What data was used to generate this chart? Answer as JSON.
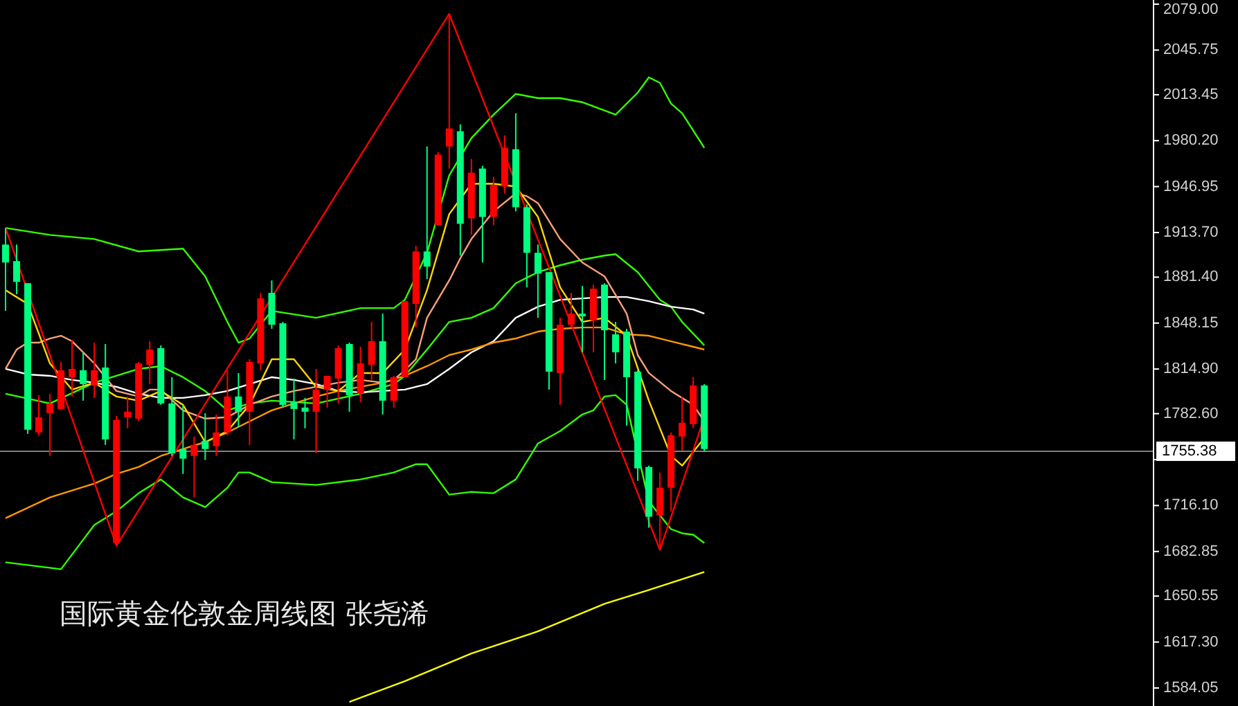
{
  "chart_data": {
    "type": "candlestick",
    "title": "国际黄金伦敦金周线图  张尧浠",
    "categories": [
      null,
      null,
      null,
      null,
      null,
      null,
      null,
      null,
      null,
      null,
      null,
      null,
      null,
      null,
      null,
      null,
      null,
      null,
      null,
      null,
      null,
      null,
      null,
      null,
      null,
      null,
      null,
      null,
      null,
      null,
      null,
      null,
      null,
      null,
      null,
      null,
      null,
      null,
      null,
      null,
      null,
      null,
      null,
      null,
      null,
      null,
      null,
      null,
      null,
      null,
      null,
      null,
      null,
      null,
      null,
      null,
      null,
      null,
      null,
      null,
      null,
      null,
      null,
      null,
      null,
      null,
      null,
      null,
      null,
      null,
      null,
      null,
      null,
      null,
      null,
      null,
      null,
      null,
      null,
      null,
      null,
      null,
      null,
      null,
      null,
      null,
      null,
      null,
      null,
      null,
      null,
      null,
      null,
      null,
      null,
      null,
      null,
      null,
      null,
      null,
      null,
      null,
      null,
      null
    ],
    "ohlc": [
      [
        1905,
        1917,
        1857,
        1892
      ],
      [
        1893,
        1905,
        1869,
        1878
      ],
      [
        1877,
        1877,
        1768,
        1771
      ],
      [
        1769,
        1796,
        1767,
        1780
      ],
      [
        1783,
        1797,
        1752,
        1790
      ],
      [
        1786,
        1820,
        1785,
        1814
      ],
      [
        1809,
        1836,
        1795,
        1815
      ],
      [
        1814,
        1827,
        1792,
        1804
      ],
      [
        1803,
        1834,
        1794,
        1814
      ],
      [
        1816,
        1833,
        1760,
        1764
      ],
      [
        1689,
        1781,
        1687,
        1778
      ],
      [
        1780,
        1795,
        1772,
        1784
      ],
      [
        1779,
        1820,
        1777,
        1819
      ],
      [
        1818,
        1835,
        1804,
        1829
      ],
      [
        1830,
        1832,
        1789,
        1790
      ],
      [
        1790,
        1809,
        1752,
        1754
      ],
      [
        1757,
        1789,
        1739,
        1750
      ],
      [
        1752,
        1766,
        1722,
        1760
      ],
      [
        1763,
        1783,
        1749,
        1757
      ],
      [
        1759,
        1782,
        1752,
        1769
      ],
      [
        1769,
        1814,
        1767,
        1795
      ],
      [
        1795,
        1812,
        1773,
        1784
      ],
      [
        1784,
        1822,
        1760,
        1820
      ],
      [
        1819,
        1870,
        1814,
        1866
      ],
      [
        1870,
        1879,
        1844,
        1847
      ],
      [
        1848,
        1849,
        1787,
        1789
      ],
      [
        1791,
        1808,
        1764,
        1786
      ],
      [
        1787,
        1794,
        1772,
        1784
      ],
      [
        1784,
        1815,
        1754,
        1800
      ],
      [
        1800,
        1810,
        1787,
        1810
      ],
      [
        1808,
        1832,
        1790,
        1830
      ],
      [
        1833,
        1834,
        1784,
        1796
      ],
      [
        1797,
        1831,
        1791,
        1819
      ],
      [
        1818,
        1849,
        1807,
        1835
      ],
      [
        1835,
        1855,
        1782,
        1792
      ],
      [
        1792,
        1810,
        1787,
        1809
      ],
      [
        1809,
        1864,
        1809,
        1864
      ],
      [
        1862,
        1904,
        1845,
        1900
      ],
      [
        1900,
        1976,
        1880,
        1889
      ],
      [
        1919,
        1972,
        1919,
        1970
      ],
      [
        1976,
        2072,
        1960,
        1989
      ],
      [
        1987,
        1992,
        1897,
        1920
      ],
      [
        1924,
        1967,
        1912,
        1957
      ],
      [
        1960,
        1962,
        1892,
        1925
      ],
      [
        1925,
        1954,
        1919,
        1948
      ],
      [
        1947,
        1984,
        1942,
        1975
      ],
      [
        1974,
        2000,
        1929,
        1932
      ],
      [
        1932,
        1934,
        1874,
        1899
      ],
      [
        1899,
        1905,
        1852,
        1884
      ],
      [
        1885,
        1885,
        1800,
        1813
      ],
      [
        1812,
        1852,
        1789,
        1847
      ],
      [
        1847,
        1870,
        1845,
        1855
      ],
      [
        1855,
        1875,
        1827,
        1853
      ],
      [
        1850,
        1876,
        1827,
        1873
      ],
      [
        1876,
        1877,
        1807,
        1843
      ],
      [
        1840,
        1849,
        1819,
        1827
      ],
      [
        1842,
        1844,
        1774,
        1809
      ],
      [
        1813,
        1814,
        1734,
        1743
      ],
      [
        1744,
        1745,
        1700,
        1708
      ],
      [
        1709,
        1740,
        1684,
        1729
      ],
      [
        1729,
        1769,
        1712,
        1767
      ],
      [
        1766,
        1795,
        1756,
        1776
      ],
      [
        1775,
        1809,
        1772,
        1803
      ],
      [
        1803,
        1804,
        1755,
        1757
      ],
      null,
      null,
      null,
      null,
      null,
      null,
      null,
      null,
      null,
      null,
      null,
      null,
      null,
      null,
      null,
      null,
      null,
      null,
      null,
      null,
      null,
      null,
      null,
      null,
      null,
      null,
      null,
      null,
      null,
      null,
      null,
      null,
      null,
      null,
      null,
      null,
      null,
      null,
      null,
      null
    ],
    "colors": [
      "#00ff7f",
      "#00ff7f",
      "#00ff7f",
      "#ff0000",
      "#ff0000",
      "#ff0000",
      "#ff0000",
      "#00ff7f",
      "#ff0000",
      "#00ff7f",
      "#ff0000",
      "#ff0000",
      "#ff0000",
      "#ff0000",
      "#00ff7f",
      "#00ff7f",
      "#00ff7f",
      "#ff0000",
      "#00ff7f",
      "#ff0000",
      "#ff0000",
      "#00ff7f",
      "#ff0000",
      "#ff0000",
      "#00ff7f",
      "#00ff7f",
      "#00ff7f",
      "#00ff7f",
      "#ff0000",
      "#ff0000",
      "#ff0000",
      "#00ff7f",
      "#ff0000",
      "#ff0000",
      "#00ff7f",
      "#ff0000",
      "#ff0000",
      "#ff0000",
      "#00ff7f",
      "#ff0000",
      "#ff0000",
      "#00ff7f",
      "#ff0000",
      "#00ff7f",
      "#ff0000",
      "#ff0000",
      "#00ff7f",
      "#00ff7f",
      "#00ff7f",
      "#00ff7f",
      "#ff0000",
      "#ff0000",
      "#00ff7f",
      "#ff0000",
      "#00ff7f",
      "#00ff7f",
      "#00ff7f",
      "#00ff7f",
      "#00ff7f",
      "#ff0000",
      "#ff0000",
      "#ff0000",
      "#ff0000",
      "#00ff7f",
      null,
      null,
      null,
      null,
      null,
      null,
      null,
      null,
      null,
      null,
      null,
      null,
      null,
      null,
      null,
      null,
      null,
      null,
      null,
      null,
      null,
      null,
      null,
      null,
      null,
      null,
      null,
      null,
      null,
      null,
      null,
      null,
      null,
      null,
      null,
      null,
      null,
      null,
      null,
      null
    ],
    "series": [
      {
        "type": "line",
        "color": "#33ff00",
        "values": [
          1917,
          null,
          null,
          null,
          1912,
          null,
          null,
          null,
          1909,
          null,
          null,
          null,
          1900,
          null,
          null,
          null,
          1902,
          null,
          1882,
          null,
          1849,
          1834,
          1837,
          null,
          1857,
          null,
          null,
          null,
          1852,
          null,
          null,
          null,
          1859,
          null,
          null,
          1859,
          1865,
          null,
          1899,
          null,
          1955,
          null,
          1982,
          null,
          1999,
          null,
          2014,
          null,
          2011,
          null,
          2011,
          null,
          2008,
          null,
          2002,
          1999,
          null,
          2015,
          2026,
          2022,
          2007,
          2000,
          null,
          1975,
          null,
          null,
          null,
          null,
          null,
          null,
          null,
          null,
          null,
          null,
          null,
          null,
          null,
          null,
          null,
          null,
          null,
          null,
          null,
          null,
          null,
          null,
          null,
          null,
          null,
          null,
          null,
          null,
          null,
          null,
          null,
          null,
          null,
          null,
          null,
          null,
          null,
          null,
          null,
          null
        ]
      },
      {
        "type": "line",
        "color": "#33ff00",
        "values": [
          1797,
          null,
          null,
          null,
          1790,
          null,
          null,
          null,
          1805,
          null,
          null,
          null,
          1815,
          null,
          1817,
          null,
          1809,
          null,
          1799,
          null,
          1785,
          null,
          1790,
          null,
          1792,
          null,
          null,
          null,
          1790,
          null,
          null,
          null,
          1797,
          null,
          null,
          1804,
          1810,
          null,
          1829,
          null,
          1849,
          null,
          1852,
          null,
          1859,
          null,
          1877,
          null,
          1885,
          null,
          1890,
          null,
          1894,
          null,
          1897,
          1898,
          null,
          1885,
          1875,
          1865,
          1860,
          1849,
          null,
          1832,
          null,
          null,
          null,
          null,
          null,
          null,
          null,
          null,
          null,
          null,
          null,
          null,
          null,
          null,
          null,
          null,
          null,
          null,
          null,
          null,
          null,
          null,
          null,
          null,
          null,
          null,
          null,
          null,
          null,
          null,
          null,
          null,
          null,
          null,
          null,
          null,
          null,
          null,
          null,
          null
        ]
      },
      {
        "type": "line",
        "color": "#33ff00",
        "values": [
          1675,
          null,
          null,
          null,
          1671,
          1670,
          null,
          null,
          1702,
          null,
          1712,
          null,
          1725,
          null,
          1735,
          null,
          1722,
          null,
          1715,
          null,
          1729,
          1740,
          1740,
          null,
          1733,
          null,
          null,
          null,
          1731,
          null,
          null,
          null,
          1735,
          null,
          null,
          1740,
          null,
          1746,
          1746,
          null,
          1724,
          null,
          1726,
          null,
          1725,
          null,
          1735,
          null,
          1761,
          null,
          1770,
          null,
          1782,
          1785,
          1795,
          1796,
          1789,
          null,
          1719,
          1709,
          1699,
          1696,
          1695,
          1689,
          null,
          null,
          null,
          null,
          null,
          null,
          null,
          null,
          null,
          null,
          null,
          null,
          null,
          null,
          null,
          null,
          null,
          null,
          null,
          null,
          null,
          null,
          null,
          null,
          null,
          null,
          null,
          null,
          null,
          null,
          null,
          null,
          null,
          null,
          null,
          null,
          null,
          null,
          null,
          null
        ]
      },
      {
        "type": "line",
        "color": "#ffffff",
        "values": [
          1815,
          null,
          1811,
          null,
          1810,
          null,
          1807,
          null,
          1805,
          null,
          1802,
          null,
          1797,
          null,
          1794,
          null,
          1794,
          null,
          1796,
          null,
          1799,
          null,
          1804,
          null,
          1809,
          null,
          1807,
          null,
          1804,
          null,
          1799,
          null,
          1798,
          null,
          1799,
          null,
          1800,
          null,
          1804,
          null,
          1815,
          null,
          1827,
          null,
          1835,
          null,
          1852,
          null,
          1860,
          null,
          1865,
          null,
          1866,
          null,
          1867,
          null,
          1867,
          null,
          1864,
          null,
          1860,
          null,
          1858,
          1855,
          null,
          null,
          null,
          null,
          null,
          null,
          null,
          null,
          null,
          null,
          null,
          null,
          null,
          null,
          null,
          null,
          null,
          null,
          null,
          null,
          null,
          null,
          null,
          null,
          null,
          null,
          null,
          null,
          null,
          null,
          null,
          null,
          null,
          null,
          null,
          null,
          null,
          null,
          null,
          null
        ]
      },
      {
        "type": "line",
        "color": "#ff9900",
        "values": [
          1707,
          null,
          null,
          null,
          1722,
          null,
          null,
          null,
          1732,
          null,
          1739,
          null,
          1744,
          null,
          1752,
          null,
          1757,
          null,
          1762,
          null,
          1769,
          null,
          1777,
          null,
          1785,
          null,
          1790,
          null,
          1795,
          null,
          1799,
          null,
          1802,
          null,
          1805,
          null,
          1810,
          null,
          1817,
          null,
          1825,
          null,
          1829,
          null,
          1834,
          null,
          1837,
          null,
          1842,
          null,
          1844,
          null,
          1845,
          null,
          1845,
          null,
          1840,
          null,
          1839,
          null,
          1835,
          null,
          1831,
          1829,
          null,
          null,
          null,
          null,
          null,
          null,
          null,
          null,
          null,
          null,
          null,
          null,
          null,
          null,
          null,
          null,
          null,
          null,
          null,
          null,
          null,
          null,
          null,
          null,
          null,
          null,
          null,
          null,
          null,
          null,
          null,
          null,
          null,
          null,
          null,
          null,
          null,
          null,
          null,
          null
        ]
      },
      {
        "type": "line",
        "color": "#ffa07a",
        "values": [
          1815,
          1829,
          1834,
          1834,
          1837,
          1839,
          1835,
          null,
          1819,
          null,
          1799,
          null,
          1795,
          1800,
          1800,
          null,
          1785,
          null,
          1779,
          null,
          1780,
          null,
          1789,
          null,
          1795,
          null,
          1799,
          null,
          1802,
          null,
          1805,
          null,
          1807,
          null,
          1805,
          1807,
          1814,
          1822,
          1852,
          null,
          1879,
          1895,
          1909,
          null,
          1929,
          null,
          1942,
          1940,
          1935,
          null,
          1909,
          null,
          1892,
          null,
          1882,
          null,
          1855,
          1825,
          1812,
          null,
          1799,
          null,
          1789,
          1777,
          null,
          null,
          null,
          null,
          null,
          null,
          null,
          null,
          null,
          null,
          null,
          null,
          null,
          null,
          null,
          null,
          null,
          null,
          null,
          null,
          null,
          null,
          null,
          null,
          null,
          null,
          null,
          null,
          null,
          null,
          null,
          null,
          null,
          null,
          null,
          null,
          null,
          null,
          null,
          null
        ]
      },
      {
        "type": "line",
        "color": "#ffd700",
        "values": [
          1872,
          null,
          1862,
          null,
          1819,
          null,
          1800,
          null,
          1805,
          null,
          1795,
          null,
          1792,
          null,
          1799,
          null,
          1789,
          null,
          1762,
          null,
          1770,
          null,
          1789,
          null,
          1822,
          null,
          1822,
          null,
          1802,
          null,
          1799,
          null,
          1812,
          null,
          1812,
          null,
          1829,
          null,
          1872,
          null,
          1927,
          null,
          1949,
          null,
          1949,
          null,
          1947,
          null,
          1925,
          null,
          1874,
          null,
          1849,
          null,
          1852,
          null,
          1839,
          null,
          1792,
          null,
          1752,
          1745,
          1755,
          1765,
          null,
          null,
          null,
          null,
          null,
          null,
          null,
          null,
          null,
          null,
          null,
          null,
          null,
          null,
          null,
          null,
          null,
          null,
          null,
          null,
          null,
          null,
          null,
          null,
          null,
          null,
          null,
          null,
          null,
          null,
          null,
          null,
          null,
          null,
          null,
          null,
          null,
          null,
          null,
          null
        ]
      },
      {
        "type": "line",
        "color": "#ffff00",
        "values": [
          null,
          null,
          null,
          null,
          null,
          null,
          null,
          null,
          null,
          null,
          null,
          null,
          null,
          null,
          null,
          null,
          null,
          null,
          null,
          null,
          null,
          null,
          null,
          null,
          null,
          null,
          null,
          null,
          null,
          null,
          null,
          1574,
          null,
          null,
          null,
          null,
          1589,
          null,
          null,
          null,
          null,
          null,
          1609,
          null,
          null,
          null,
          null,
          null,
          1625,
          null,
          null,
          null,
          null,
          null,
          1645,
          null,
          null,
          null,
          1655,
          null,
          null,
          null,
          null,
          1668,
          null,
          null,
          null,
          null,
          null,
          null,
          null,
          null,
          null,
          null,
          null,
          null,
          null,
          null,
          null,
          null,
          null,
          null,
          null,
          null,
          null,
          null,
          null,
          null,
          null,
          null,
          null,
          null,
          null,
          null,
          null,
          null,
          null,
          null,
          null,
          null,
          null,
          null,
          null,
          null
        ]
      },
      {
        "type": "line",
        "color": "#ff0000",
        "values": [
          1917,
          null,
          null,
          null,
          null,
          null,
          null,
          null,
          null,
          null,
          1687,
          null,
          null,
          null,
          null,
          null,
          null,
          null,
          null,
          null,
          null,
          null,
          null,
          null,
          null,
          null,
          null,
          null,
          null,
          null,
          null,
          null,
          null,
          null,
          null,
          null,
          null,
          null,
          null,
          null,
          2072,
          null,
          null,
          null,
          null,
          null,
          null,
          null,
          null,
          null,
          null,
          null,
          null,
          null,
          null,
          null,
          null,
          null,
          null,
          1684,
          null,
          null,
          null,
          1780,
          null,
          null,
          null,
          null,
          null,
          null,
          null,
          null,
          null,
          null,
          null,
          null,
          null,
          null,
          null,
          null,
          null,
          null,
          null,
          null,
          null,
          null,
          null,
          null,
          null,
          null,
          null,
          null,
          null,
          null,
          null,
          null,
          null,
          null,
          null,
          null,
          null,
          null,
          null,
          null
        ]
      }
    ],
    "ylim": [
      1571,
      2082
    ],
    "yticks": [
      {
        "value": 2079,
        "label": "2079.00"
      },
      {
        "value": 2045.75,
        "label": "2045.75"
      },
      {
        "value": 2013.45,
        "label": "2013.45"
      },
      {
        "value": 1980.2,
        "label": "1980.20"
      },
      {
        "value": 1946.95,
        "label": "1946.95"
      },
      {
        "value": 1913.7,
        "label": "1913.70"
      },
      {
        "value": 1881.4,
        "label": "1881.40"
      },
      {
        "value": 1848.15,
        "label": "1848.15"
      },
      {
        "value": 1814.9,
        "label": "1814.90"
      },
      {
        "value": 1782.6,
        "label": "1782.60"
      },
      {
        "value": 1749.35,
        "label": null
      },
      {
        "value": 1716.1,
        "label": "1716.10"
      },
      {
        "value": 1682.85,
        "label": "1682.85"
      },
      {
        "value": 1650.55,
        "label": "1650.55"
      },
      {
        "value": 1617.3,
        "label": "1617.30"
      },
      {
        "value": 1584.05,
        "label": "1584.05"
      }
    ],
    "ref_lines": [
      {
        "axis": "y",
        "value": 1755.38,
        "label": "1755.38",
        "color": "#808080"
      }
    ]
  }
}
